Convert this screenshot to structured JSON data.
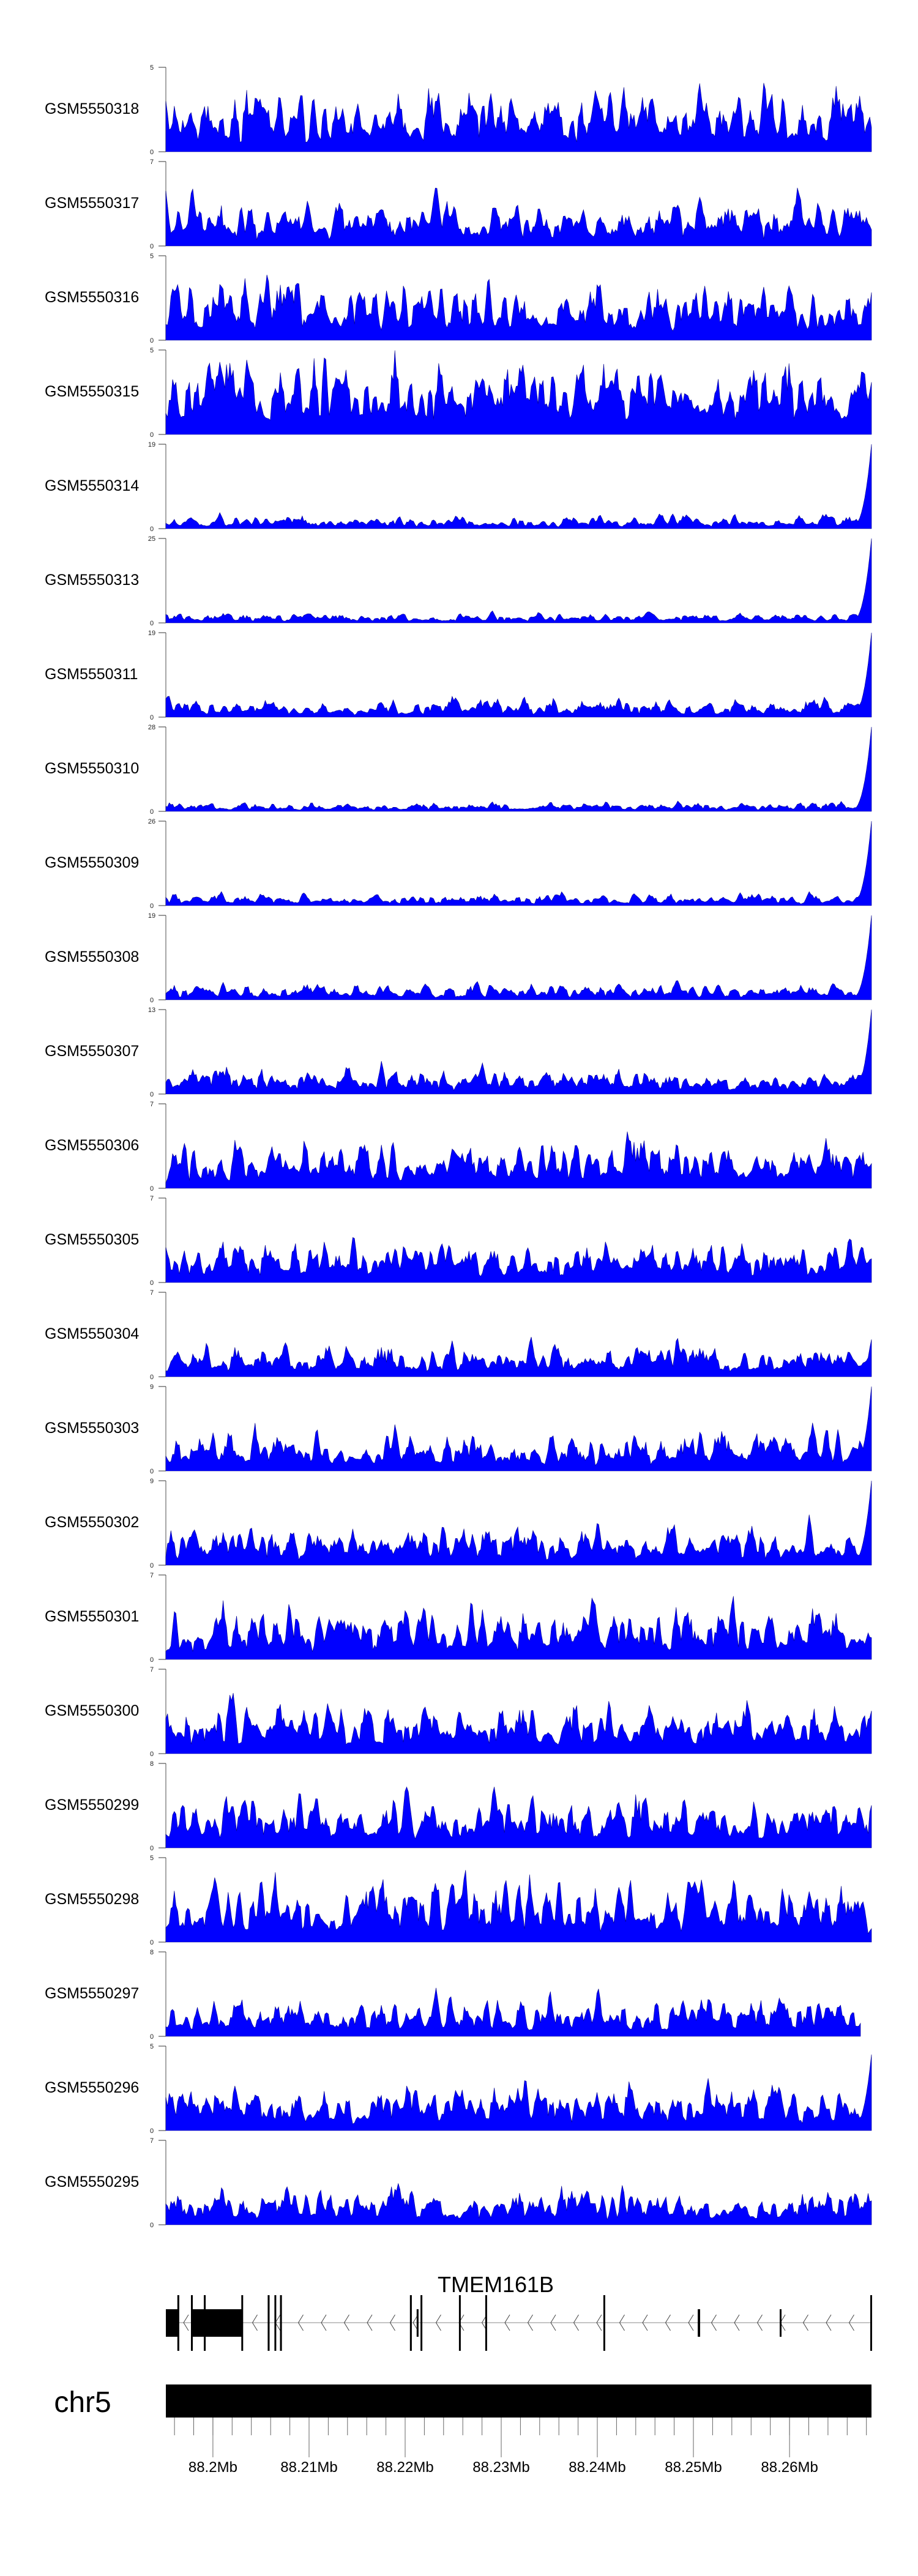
{
  "chart_data": {
    "type": "area",
    "title": "",
    "xlabel": "",
    "region": {
      "chrom": "chr5",
      "start_mb": 88.1951,
      "end_mb": 88.26853
    },
    "fill_color": "#0000ff",
    "tracks": [
      {
        "name": "GSM5550318",
        "ylim": [
          0,
          5
        ],
        "ymax_label": "5",
        "ymin_label": "0",
        "typical": 2.0,
        "end_value": 2.0
      },
      {
        "name": "GSM5550317",
        "ylim": [
          0,
          7
        ],
        "ymax_label": "7",
        "ymin_label": "0",
        "typical": 2.0,
        "end_value": 2.0
      },
      {
        "name": "GSM5550316",
        "ylim": [
          0,
          5
        ],
        "ymax_label": "5",
        "ymin_label": "0",
        "typical": 2.0,
        "end_value": 1.8
      },
      {
        "name": "GSM5550315",
        "ylim": [
          0,
          5
        ],
        "ymax_label": "5",
        "ymin_label": "0",
        "typical": 2.5,
        "end_value": 2.0
      },
      {
        "name": "GSM5550314",
        "ylim": [
          0,
          19
        ],
        "ymax_label": "19",
        "ymin_label": "0",
        "typical": 1.6,
        "end_value": 19
      },
      {
        "name": "GSM5550313",
        "ylim": [
          0,
          25
        ],
        "ymax_label": "25",
        "ymin_label": "0",
        "typical": 1.6,
        "end_value": 25
      },
      {
        "name": "GSM5550311",
        "ylim": [
          0,
          19
        ],
        "ymax_label": "19",
        "ymin_label": "0",
        "typical": 2.2,
        "end_value": 19
      },
      {
        "name": "GSM5550310",
        "ylim": [
          0,
          28
        ],
        "ymax_label": "28",
        "ymin_label": "0",
        "typical": 1.6,
        "end_value": 28
      },
      {
        "name": "GSM5550309",
        "ylim": [
          0,
          26
        ],
        "ymax_label": "26",
        "ymin_label": "0",
        "typical": 2.0,
        "end_value": 26
      },
      {
        "name": "GSM5550308",
        "ylim": [
          0,
          19
        ],
        "ymax_label": "19",
        "ymin_label": "0",
        "typical": 2.0,
        "end_value": 19
      },
      {
        "name": "GSM5550307",
        "ylim": [
          0,
          13
        ],
        "ymax_label": "13",
        "ymin_label": "0",
        "typical": 2.2,
        "end_value": 13
      },
      {
        "name": "GSM5550306",
        "ylim": [
          0,
          7
        ],
        "ymax_label": "7",
        "ymin_label": "0",
        "typical": 2.2,
        "end_value": 2.5
      },
      {
        "name": "GSM5550305",
        "ylim": [
          0,
          7
        ],
        "ymax_label": "7",
        "ymin_label": "0",
        "typical": 2.0,
        "end_value": 2.0
      },
      {
        "name": "GSM5550304",
        "ylim": [
          0,
          7
        ],
        "ymax_label": "7",
        "ymin_label": "0",
        "typical": 1.5,
        "end_value": 3.0
      },
      {
        "name": "GSM5550303",
        "ylim": [
          0,
          9
        ],
        "ymax_label": "9",
        "ymin_label": "0",
        "typical": 2.3,
        "end_value": 9
      },
      {
        "name": "GSM5550302",
        "ylim": [
          0,
          9
        ],
        "ymax_label": "9",
        "ymin_label": "0",
        "typical": 2.3,
        "end_value": 9
      },
      {
        "name": "GSM5550301",
        "ylim": [
          0,
          7
        ],
        "ymax_label": "7",
        "ymin_label": "0",
        "typical": 2.3,
        "end_value": 2.0
      },
      {
        "name": "GSM5550300",
        "ylim": [
          0,
          7
        ],
        "ymax_label": "7",
        "ymin_label": "0",
        "typical": 2.3,
        "end_value": 2.5
      },
      {
        "name": "GSM5550299",
        "ylim": [
          0,
          8
        ],
        "ymax_label": "8",
        "ymin_label": "0",
        "typical": 2.8,
        "end_value": 3.0
      },
      {
        "name": "GSM5550298",
        "ylim": [
          0,
          5
        ],
        "ymax_label": "5",
        "ymin_label": "0",
        "typical": 2.0,
        "end_value": 2.0
      },
      {
        "name": "GSM5550297",
        "ylim": [
          0,
          8
        ],
        "ymax_label": "8",
        "ymin_label": "0",
        "typical": 2.0,
        "end_value": 0
      },
      {
        "name": "GSM5550296",
        "ylim": [
          0,
          5
        ],
        "ymax_label": "5",
        "ymin_label": "0",
        "typical": 1.5,
        "end_value": 4.5
      },
      {
        "name": "GSM5550295",
        "ylim": [
          0,
          7
        ],
        "ymax_label": "7",
        "ymin_label": "0",
        "typical": 1.6,
        "end_value": 2.0
      }
    ],
    "gene": {
      "name": "TMEM161B",
      "strand": "-",
      "exons": [
        {
          "start": 88.1951,
          "end": 88.19644,
          "kind": "mid"
        },
        {
          "start": 88.1963,
          "end": 88.1965,
          "kind": "tall"
        },
        {
          "start": 88.19771,
          "end": 88.20306,
          "kind": "mid"
        },
        {
          "start": 88.19771,
          "end": 88.19781,
          "kind": "tall"
        },
        {
          "start": 88.19905,
          "end": 88.19925,
          "kind": "tall"
        },
        {
          "start": 88.20295,
          "end": 88.20308,
          "kind": "tall"
        },
        {
          "start": 88.2057,
          "end": 88.2059,
          "kind": "tall"
        },
        {
          "start": 88.2064,
          "end": 88.20655,
          "kind": "tall"
        },
        {
          "start": 88.20698,
          "end": 88.20718,
          "kind": "tall"
        },
        {
          "start": 88.2205,
          "end": 88.2207,
          "kind": "tall"
        },
        {
          "start": 88.2212,
          "end": 88.2214,
          "kind": "mid"
        },
        {
          "start": 88.2216,
          "end": 88.22176,
          "kind": "tall"
        },
        {
          "start": 88.2256,
          "end": 88.22576,
          "kind": "tall"
        },
        {
          "start": 88.22834,
          "end": 88.2285,
          "kind": "tall"
        },
        {
          "start": 88.24063,
          "end": 88.24079,
          "kind": "tall"
        },
        {
          "start": 88.25045,
          "end": 88.2507,
          "kind": "mid"
        },
        {
          "start": 88.25898,
          "end": 88.25912,
          "kind": "mid"
        },
        {
          "start": 88.2684,
          "end": 88.26853,
          "kind": "tall"
        }
      ]
    },
    "ideogram_label": "chr5",
    "axis": {
      "major_ticks": [
        88.2,
        88.21,
        88.22,
        88.23,
        88.24,
        88.25,
        88.26
      ],
      "major_labels": [
        "88.2Mb",
        "88.21Mb",
        "88.22Mb",
        "88.23Mb",
        "88.24Mb",
        "88.25Mb",
        "88.26Mb"
      ],
      "minor_step_mb": 0.002
    }
  }
}
